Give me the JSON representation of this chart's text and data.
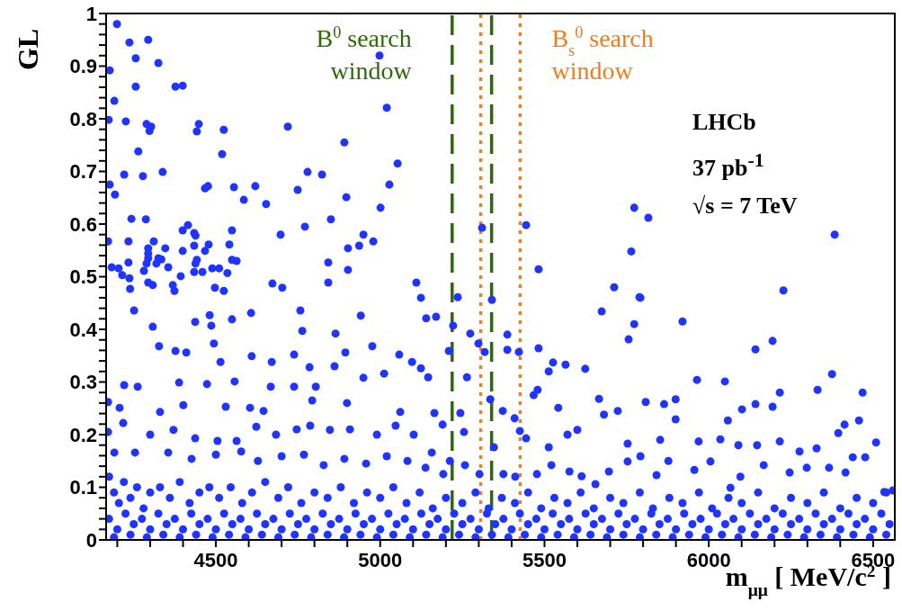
{
  "chart_data": {
    "type": "scatter",
    "xlabel": "m$_{μμ}$ [ MeV/c$^{2}$ ]",
    "ylabel": "GL",
    "xlim": [
      4166,
      6566
    ],
    "ylim": [
      0,
      1
    ],
    "xticks": [
      {
        "value": 4200,
        "label": null
      },
      {
        "value": 4300,
        "label": null
      },
      {
        "value": 4400,
        "label": null
      },
      4500,
      {
        "value": 4600,
        "label": null
      },
      {
        "value": 4700,
        "label": null
      },
      {
        "value": 4800,
        "label": null
      },
      {
        "value": 4900,
        "label": null
      },
      5000,
      {
        "value": 5100,
        "label": null
      },
      {
        "value": 5200,
        "label": null
      },
      {
        "value": 5300,
        "label": null
      },
      {
        "value": 5400,
        "label": null
      },
      5500,
      {
        "value": 5600,
        "label": null
      },
      {
        "value": 5700,
        "label": null
      },
      {
        "value": 5800,
        "label": null
      },
      {
        "value": 5900,
        "label": null
      },
      6000,
      {
        "value": 6100,
        "label": null
      },
      {
        "value": 6200,
        "label": null
      },
      {
        "value": 6300,
        "label": null
      },
      {
        "value": 6400,
        "label": null
      },
      6500
    ],
    "yticks": [
      0,
      {
        "value": 0.02,
        "label": null
      },
      {
        "value": 0.04,
        "label": null
      },
      {
        "value": 0.06,
        "label": null
      },
      {
        "value": 0.08,
        "label": null
      },
      0.1,
      {
        "value": 0.12,
        "label": null
      },
      {
        "value": 0.14,
        "label": null
      },
      {
        "value": 0.16,
        "label": null
      },
      {
        "value": 0.18,
        "label": null
      },
      0.2,
      {
        "value": 0.22,
        "label": null
      },
      {
        "value": 0.24,
        "label": null
      },
      {
        "value": 0.26,
        "label": null
      },
      {
        "value": 0.28,
        "label": null
      },
      0.3,
      {
        "value": 0.32,
        "label": null
      },
      {
        "value": 0.34,
        "label": null
      },
      {
        "value": 0.36,
        "label": null
      },
      {
        "value": 0.38,
        "label": null
      },
      0.4,
      {
        "value": 0.42,
        "label": null
      },
      {
        "value": 0.44,
        "label": null
      },
      {
        "value": 0.46,
        "label": null
      },
      {
        "value": 0.48,
        "label": null
      },
      0.5,
      {
        "value": 0.52,
        "label": null
      },
      {
        "value": 0.54,
        "label": null
      },
      {
        "value": 0.56,
        "label": null
      },
      {
        "value": 0.58,
        "label": null
      },
      0.6,
      {
        "value": 0.62,
        "label": null
      },
      {
        "value": 0.64,
        "label": null
      },
      {
        "value": 0.66,
        "label": null
      },
      {
        "value": 0.68,
        "label": null
      },
      0.7,
      {
        "value": 0.72,
        "label": null
      },
      {
        "value": 0.74,
        "label": null
      },
      {
        "value": 0.76,
        "label": null
      },
      {
        "value": 0.78,
        "label": null
      },
      0.8,
      {
        "value": 0.82,
        "label": null
      },
      {
        "value": 0.84,
        "label": null
      },
      {
        "value": 0.86,
        "label": null
      },
      {
        "value": 0.88,
        "label": null
      },
      0.9,
      {
        "value": 0.92,
        "label": null
      },
      {
        "value": 0.94,
        "label": null
      },
      {
        "value": 0.96,
        "label": null
      },
      {
        "value": 0.98,
        "label": null
      },
      1
    ],
    "marker": "circle",
    "grid": false,
    "legend": false,
    "ref_lines": [
      {
        "axis": "x",
        "value": 5219,
        "label": "B$^{0}$ search window",
        "color": "#2e6a0c",
        "line_style": "dashed"
      },
      {
        "axis": "x",
        "value": 5339,
        "label": null,
        "color": "#2e6a0c",
        "line_style": "dashed"
      },
      {
        "axis": "x",
        "value": 5306,
        "label": null,
        "color": "#f07d1e",
        "line_style": "dotted"
      },
      {
        "axis": "x",
        "value": 5426,
        "label": "B$_{s}$$^{0}$ search window",
        "color": "#f07d1e",
        "line_style": "dotted"
      }
    ],
    "annotations": [
      "LHCb",
      "37 pb$^{-1}$",
      "√s = 7 TeV"
    ],
    "series": [
      {
        "color": "#1f35ff",
        "x": [
          4199,
          4237,
          4294,
          4177,
          4256,
          4325,
          4256,
          4377,
          4399,
          4191,
          4174,
          4226,
          4289,
          4303,
          4298,
          4442,
          4448,
          4524,
          4519,
          4264,
          4719,
          4891,
          4998,
          5020,
          5053,
          5028,
          5001,
          4221,
          4278,
          4338,
          4177,
          4193,
          4467,
          4476,
          4555,
          4620,
          4585,
          4653,
          4749,
          4779,
          4823,
          4897,
          4850,
          4771,
          4697,
          4949,
          4902,
          4936,
          4979,
          4842,
          4902,
          4842,
          5110,
          5124,
          4243,
          4287,
          4415,
          4399,
          4549,
          4434,
          4438,
          4172,
          4234,
          4311,
          4478,
          4541,
          4434,
          4346,
          4294,
          4399,
          4467,
          4294,
          4294,
          4325,
          4334,
          4549,
          4563,
          4442,
          4438,
          4234,
          4319,
          4289,
          4355,
          4489,
          4510,
          4183,
          4204,
          4281,
          4434,
          4459,
          4535,
          4393,
          4215,
          4237,
          4294,
          4308,
          4369,
          4672,
          4497,
          4702,
          4239,
          4524,
          4374,
          5773,
          5816,
          5310,
          5444,
          5764,
          5482,
          5712,
          5789,
          6383,
          6227,
          5236,
          5340
        ],
        "values": [
          0.98,
          0.945,
          0.95,
          0.892,
          0.915,
          0.906,
          0.861,
          0.861,
          0.863,
          0.834,
          0.798,
          0.795,
          0.79,
          0.785,
          0.777,
          0.776,
          0.79,
          0.779,
          0.733,
          0.738,
          0.785,
          0.755,
          0.92,
          0.821,
          0.715,
          0.675,
          0.631,
          0.694,
          0.691,
          0.699,
          0.675,
          0.656,
          0.668,
          0.672,
          0.67,
          0.672,
          0.646,
          0.638,
          0.665,
          0.699,
          0.694,
          0.651,
          0.609,
          0.595,
          0.58,
          0.58,
          0.554,
          0.559,
          0.567,
          0.527,
          0.513,
          0.489,
          0.489,
          0.46,
          0.61,
          0.609,
          0.598,
          0.588,
          0.588,
          0.583,
          0.578,
          0.567,
          0.567,
          0.567,
          0.561,
          0.561,
          0.559,
          0.554,
          0.554,
          0.549,
          0.549,
          0.544,
          0.535,
          0.535,
          0.533,
          0.532,
          0.53,
          0.532,
          0.525,
          0.527,
          0.525,
          0.525,
          0.518,
          0.516,
          0.516,
          0.518,
          0.516,
          0.511,
          0.509,
          0.509,
          0.507,
          0.501,
          0.503,
          0.497,
          0.489,
          0.484,
          0.484,
          0.487,
          0.479,
          0.479,
          0.477,
          0.473,
          0.473,
          0.631,
          0.612,
          0.593,
          0.598,
          0.548,
          0.514,
          0.48,
          0.461,
          0.58,
          0.474,
          0.461,
          0.456
        ]
      },
      {
        "color": "#1f35ff",
        "x": [
          4251,
          4308,
          4481,
          4486,
          4549,
          4607,
          4757,
          4763,
          4864,
          4941,
          5140,
          5170,
          5222,
          5274,
          5299,
          5318,
          5209,
          4327,
          4377,
          4494,
          4437,
          4410,
          4514,
          4609,
          4670,
          4738,
          4785,
          4861,
          4894,
          4976,
          4949,
          5012,
          5058,
          5097,
          5146,
          5124,
          5264,
          5335,
          5244,
          4388,
          4473,
          4557,
          4667,
          4738,
          4804,
          4262,
          4221,
          4172,
          4207,
          4330,
          4401,
          4530,
          4604,
          4645,
          4793,
          4899,
          5061,
          5165,
          5190,
          5255,
          4172,
          4218,
          4300,
          4371,
          4437,
          4505,
          4563,
          4623,
          4683,
          4746,
          4787,
          4847,
          4908,
          4990,
          5047,
          5102,
          5157,
          5212,
          4191,
          4254,
          4355,
          4426,
          4500,
          4577,
          4628,
          4700,
          4768,
          4828,
          4891,
          4957,
          5020,
          5083,
          5138,
          5192,
          5258,
          5302
        ],
        "values": [
          0.436,
          0.405,
          0.427,
          0.407,
          0.419,
          0.431,
          0.436,
          0.397,
          0.392,
          0.426,
          0.421,
          0.424,
          0.407,
          0.392,
          0.373,
          0.357,
          0.359,
          0.368,
          0.359,
          0.373,
          0.414,
          0.356,
          0.338,
          0.349,
          0.338,
          0.352,
          0.328,
          0.33,
          0.356,
          0.368,
          0.308,
          0.316,
          0.352,
          0.338,
          0.309,
          0.326,
          0.309,
          0.267,
          0.241,
          0.299,
          0.296,
          0.301,
          0.291,
          0.291,
          0.291,
          0.291,
          0.294,
          0.262,
          0.251,
          0.243,
          0.256,
          0.253,
          0.251,
          0.245,
          0.265,
          0.26,
          0.243,
          0.241,
          0.219,
          0.205,
          0.205,
          0.222,
          0.2,
          0.209,
          0.193,
          0.188,
          0.188,
          0.215,
          0.2,
          0.21,
          0.217,
          0.209,
          0.21,
          0.2,
          0.217,
          0.2,
          0.166,
          0.15,
          0.166,
          0.166,
          0.166,
          0.154,
          0.162,
          0.168,
          0.15,
          0.159,
          0.162,
          0.142,
          0.154,
          0.145,
          0.159,
          0.15,
          0.137,
          0.125,
          0.142,
          0.125
        ]
      },
      {
        "color": "#1f35ff",
        "x": [
          5674,
          5792,
          5773,
          5756,
          5920,
          5387,
          5387,
          5422,
          5482,
          5526,
          5513,
          5564,
          5624,
          6142,
          6194,
          6375,
          5964,
          6049,
          6216,
          6331,
          6468,
          6194,
          6142,
          6101,
          5666,
          5542,
          5467,
          5479,
          5808,
          5864,
          5899,
          5723,
          5681,
          5373,
          5409,
          5899,
          6058,
          6457,
          6413,
          6394,
          6509,
          6216,
          6147,
          6090,
          6035,
          5969,
          5852,
          5753,
          5600,
          5570,
          5513,
          5444,
          5425,
          5346,
          6328,
          6276,
          6438,
          6476,
          6366,
          6416,
          6298,
          6246,
          6167,
          6096,
          6066,
          6005,
          5956,
          5877,
          5841,
          5792,
          5753,
          5696,
          5655,
          5613,
          5576,
          5521,
          5477,
          5411,
          5375,
          6534,
          6560
        ],
        "values": [
          0.434,
          0.46,
          0.41,
          0.381,
          0.415,
          0.39,
          0.361,
          0.357,
          0.364,
          0.337,
          0.32,
          0.333,
          0.325,
          0.362,
          0.378,
          0.315,
          0.304,
          0.301,
          0.28,
          0.285,
          0.28,
          0.253,
          0.258,
          0.248,
          0.268,
          0.251,
          0.275,
          0.285,
          0.262,
          0.258,
          0.267,
          0.245,
          0.238,
          0.245,
          0.231,
          0.229,
          0.227,
          0.227,
          0.219,
          0.203,
          0.185,
          0.187,
          0.18,
          0.18,
          0.191,
          0.187,
          0.19,
          0.183,
          0.209,
          0.2,
          0.176,
          0.193,
          0.207,
          0.176,
          0.174,
          0.168,
          0.157,
          0.157,
          0.137,
          0.128,
          0.137,
          0.128,
          0.142,
          0.12,
          0.099,
          0.149,
          0.133,
          0.15,
          0.123,
          0.159,
          0.149,
          0.13,
          0.106,
          0.121,
          0.13,
          0.142,
          0.125,
          0.12,
          0.125,
          0.091,
          0.094
        ]
      },
      {
        "color": "#1f35ff",
        "x": [
          4175,
          4190,
          4205,
          4220,
          4240,
          4260,
          4280,
          4300,
          4330,
          4360,
          4390,
          4420,
          4450,
          4480,
          4510,
          4545,
          4580,
          4610,
          4650,
          4690,
          4720,
          4760,
          4800,
          4840,
          4880,
          4920,
          4960,
          5000,
          5040,
          5080,
          5120,
          5160,
          5200,
          5250,
          5290,
          5330,
          5370,
          5410,
          5450,
          5490,
          5530,
          5570,
          5610,
          5650,
          5700,
          5740,
          5790,
          5830,
          5880,
          5920,
          5970,
          6010,
          6060,
          6100,
          6150,
          6200,
          6250,
          6300,
          6350,
          6400,
          6450,
          6500,
          6540
        ],
        "values": [
          0.12,
          0.09,
          0.07,
          0.11,
          0.08,
          0.1,
          0.06,
          0.09,
          0.1,
          0.08,
          0.11,
          0.07,
          0.09,
          0.1,
          0.08,
          0.1,
          0.07,
          0.09,
          0.11,
          0.08,
          0.1,
          0.07,
          0.09,
          0.08,
          0.1,
          0.07,
          0.09,
          0.08,
          0.1,
          0.07,
          0.09,
          0.06,
          0.08,
          0.07,
          0.09,
          0.06,
          0.08,
          0.07,
          0.09,
          0.06,
          0.08,
          0.07,
          0.09,
          0.06,
          0.08,
          0.07,
          0.09,
          0.06,
          0.08,
          0.07,
          0.09,
          0.06,
          0.08,
          0.07,
          0.09,
          0.06,
          0.08,
          0.07,
          0.09,
          0.06,
          0.08,
          0.07,
          0.09
        ]
      },
      {
        "color": "#1f35ff",
        "x": [
          4175,
          4225,
          4275,
          4325,
          4375,
          4425,
          4475,
          4525,
          4575,
          4625,
          4675,
          4725,
          4775,
          4825,
          4875,
          4925,
          4975,
          5025,
          5075,
          5125,
          5175,
          5225,
          5275,
          5325,
          5375,
          5425,
          5475,
          5525,
          5575,
          5625,
          5675,
          5725,
          5775,
          5825,
          5875,
          5925,
          5975,
          6025,
          6075,
          6125,
          6175,
          6225,
          6275,
          6325,
          6375,
          6425,
          6475,
          6525
        ],
        "values": [
          0.04,
          0.05,
          0.04,
          0.05,
          0.04,
          0.05,
          0.04,
          0.05,
          0.04,
          0.05,
          0.04,
          0.05,
          0.04,
          0.05,
          0.04,
          0.05,
          0.04,
          0.05,
          0.04,
          0.05,
          0.04,
          0.05,
          0.04,
          0.05,
          0.04,
          0.05,
          0.04,
          0.05,
          0.04,
          0.05,
          0.04,
          0.05,
          0.04,
          0.05,
          0.04,
          0.05,
          0.04,
          0.05,
          0.04,
          0.05,
          0.04,
          0.05,
          0.04,
          0.05,
          0.04,
          0.05,
          0.04,
          0.05
        ]
      },
      {
        "color": "#1f35ff",
        "x": [
          4200,
          4250,
          4300,
          4350,
          4400,
          4450,
          4500,
          4550,
          4600,
          4650,
          4700,
          4750,
          4800,
          4850,
          4900,
          4950,
          5000,
          5050,
          5100,
          5150,
          5200,
          5250,
          5300,
          5350,
          5400,
          5450,
          5500,
          5550,
          5600,
          5650,
          5700,
          5750,
          5800,
          5850,
          5900,
          5950,
          6000,
          6050,
          6100,
          6150,
          6200,
          6250,
          6300,
          6350,
          6400,
          6450,
          6500,
          6550
        ],
        "values": [
          0.02,
          0.03,
          0.02,
          0.03,
          0.02,
          0.03,
          0.02,
          0.03,
          0.02,
          0.03,
          0.02,
          0.03,
          0.02,
          0.03,
          0.02,
          0.03,
          0.02,
          0.03,
          0.02,
          0.03,
          0.02,
          0.03,
          0.02,
          0.03,
          0.02,
          0.03,
          0.02,
          0.03,
          0.02,
          0.03,
          0.02,
          0.03,
          0.02,
          0.03,
          0.02,
          0.03,
          0.02,
          0.03,
          0.02,
          0.03,
          0.02,
          0.03,
          0.02,
          0.03,
          0.02,
          0.03,
          0.02,
          0.03
        ]
      },
      {
        "color": "#1f35ff",
        "x": [
          4190,
          4240,
          4290,
          4340,
          4390,
          4440,
          4490,
          4540,
          4590,
          4640,
          4690,
          4740,
          4790,
          4840,
          4890,
          4940,
          4990,
          5040,
          5090,
          5140,
          5190,
          5240,
          5290,
          5340,
          5390,
          5440,
          5490,
          5540,
          5590,
          5640,
          5690,
          5740,
          5790,
          5840,
          5890,
          5940,
          5990,
          6040,
          6090,
          6140,
          6190,
          6240,
          6290,
          6340,
          6390,
          6440,
          6490,
          6540
        ],
        "values": [
          0.005,
          0.01,
          0.005,
          0.01,
          0.005,
          0.01,
          0.005,
          0.01,
          0.005,
          0.01,
          0.005,
          0.01,
          0.005,
          0.01,
          0.005,
          0.01,
          0.005,
          0.01,
          0.005,
          0.01,
          0.005,
          0.01,
          0.005,
          0.01,
          0.005,
          0.01,
          0.005,
          0.01,
          0.005,
          0.01,
          0.005,
          0.01,
          0.005,
          0.01,
          0.005,
          0.01,
          0.005,
          0.01,
          0.005,
          0.01,
          0.005,
          0.01,
          0.005,
          0.01,
          0.005,
          0.01,
          0.005,
          0.01
        ]
      }
    ]
  }
}
